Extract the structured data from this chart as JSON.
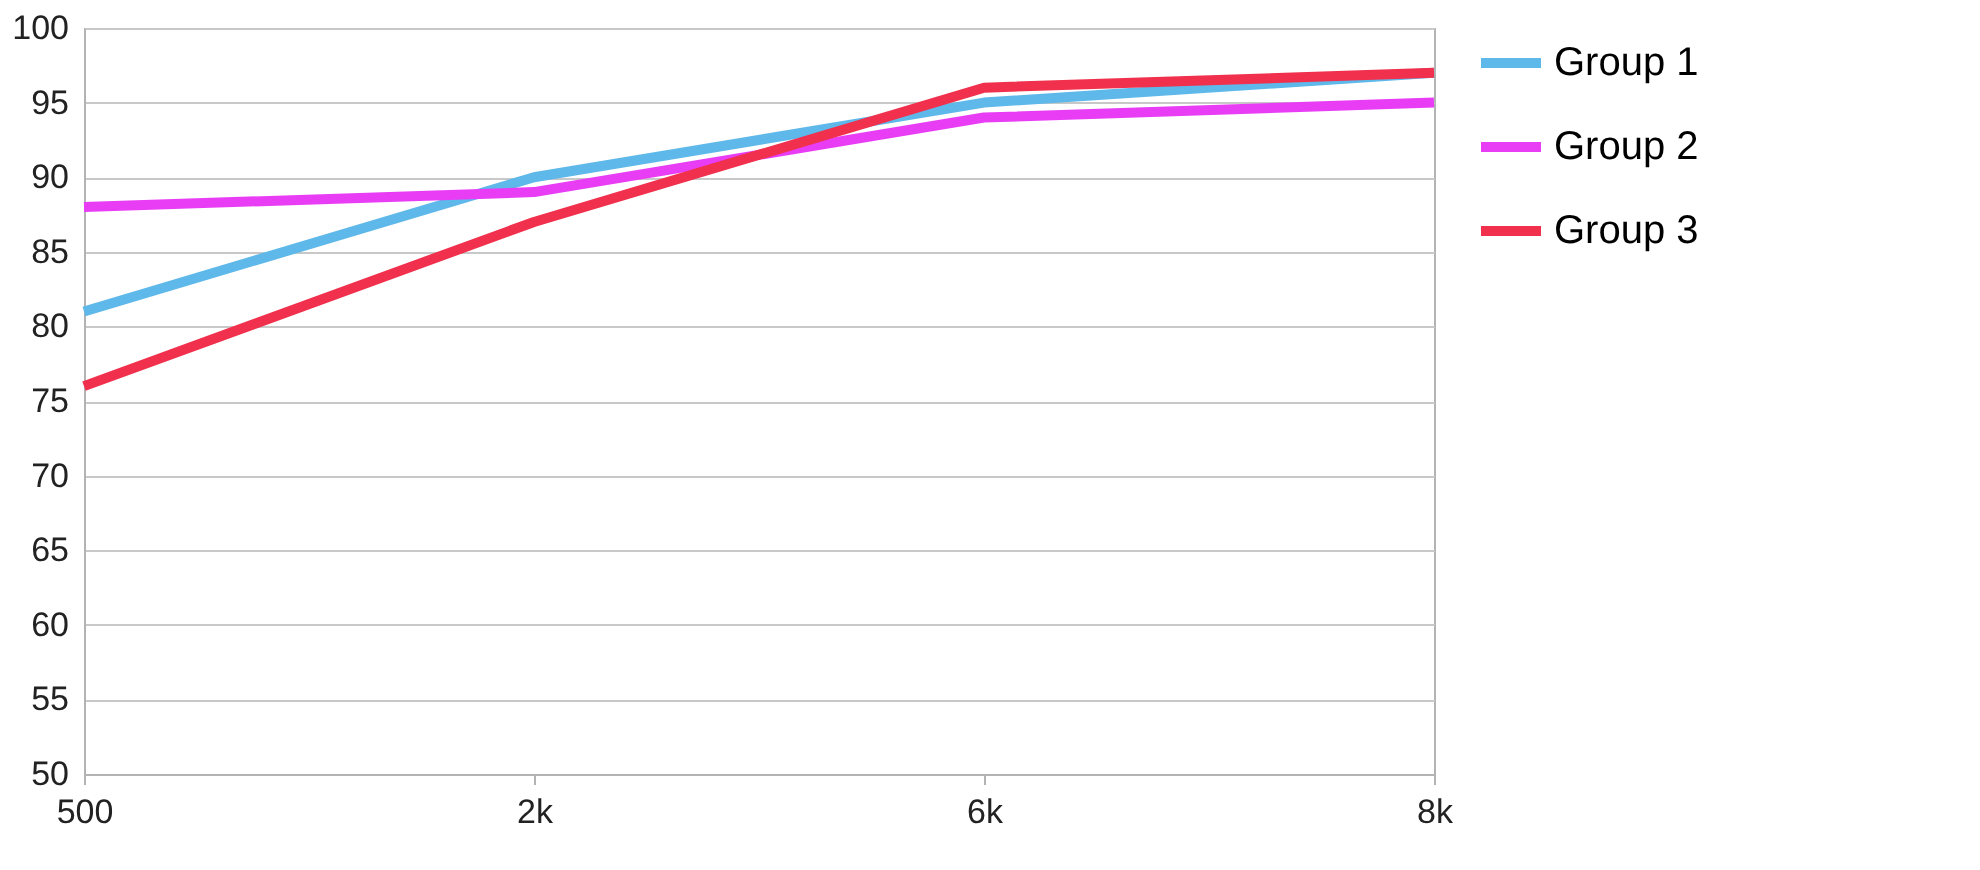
{
  "chart_data": {
    "type": "line",
    "categories": [
      "500",
      "2k",
      "6k",
      "8k"
    ],
    "series": [
      {
        "name": "Group 1",
        "color": "#5eb8ea",
        "values": [
          81,
          90,
          95,
          97
        ]
      },
      {
        "name": "Group 2",
        "color": "#e83cf5",
        "values": [
          88,
          89,
          94,
          95
        ]
      },
      {
        "name": "Group 3",
        "color": "#f0304c",
        "values": [
          76,
          87,
          96,
          97
        ]
      }
    ],
    "ylim": [
      50,
      100
    ],
    "yticks": [
      50,
      55,
      60,
      65,
      70,
      75,
      80,
      85,
      90,
      95,
      100
    ],
    "grid": "y",
    "legend": "right",
    "marker": "none",
    "line_style": "solid"
  }
}
